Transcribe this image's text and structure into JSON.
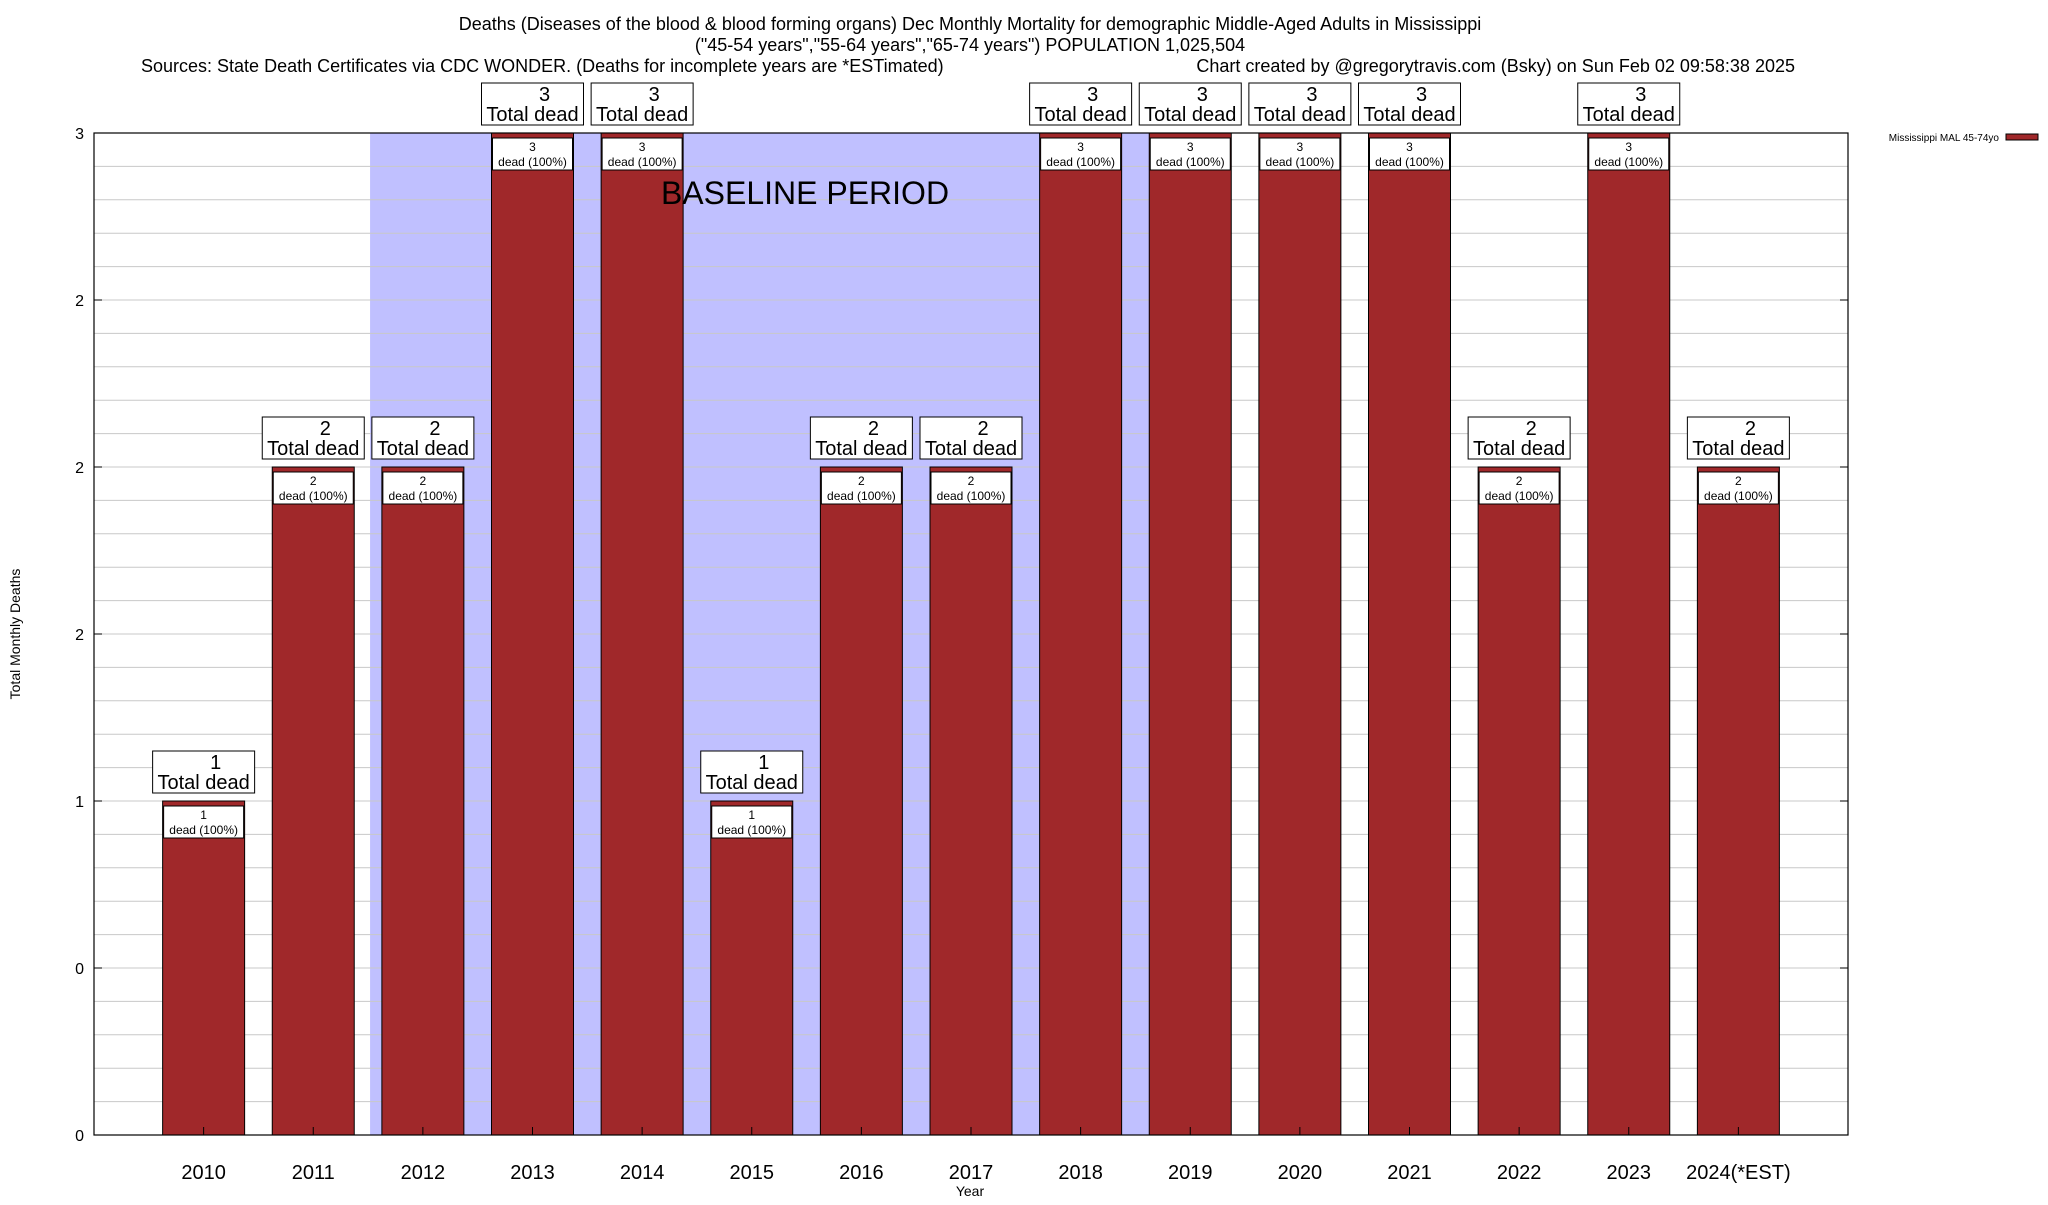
{
  "chart_data": {
    "type": "bar",
    "title_lines": [
      "Deaths (Diseases of the blood & blood forming organs) Dec Monthly Mortality for demographic Middle-Aged Adults in Mississippi",
      "(\"45-54 years\",\"55-64 years\",\"65-74 years\") POPULATION 1,025,504"
    ],
    "sources_text": "Sources: State Death Certificates via CDC WONDER. (Deaths for incomplete years are *ESTimated)",
    "credit_text": "Chart created by @gregorytravis.com (Bsky) on Sun Feb 02 09:58:38 2025",
    "xlabel": "Year",
    "ylabel": "Total Monthly Deaths",
    "ylim": [
      0,
      3
    ],
    "ytick_labels": [
      "0",
      "0",
      "1",
      "2",
      "2",
      "2",
      "3"
    ],
    "baseline_label": "BASELINE PERIOD",
    "baseline_range": [
      "2012",
      "2019"
    ],
    "categories": [
      "2010",
      "2011",
      "2012",
      "2013",
      "2014",
      "2015",
      "2016",
      "2017",
      "2018",
      "2019",
      "2020",
      "2021",
      "2022",
      "2023",
      "2024(*EST)"
    ],
    "series": [
      {
        "name": "Mississippi MAL 45-74yo",
        "color": "#a0282a",
        "values": [
          1,
          2,
          2,
          3,
          3,
          1,
          2,
          2,
          3,
          3,
          3,
          3,
          2,
          3,
          2
        ]
      }
    ],
    "total_label_suffix": "Total dead",
    "inner_label_suffix": "dead (100%)",
    "legend_position": "top-right",
    "colors": {
      "bar": "#a0282a",
      "baseline_shade": "#c0c0ff",
      "grid": "#c8c8c8"
    }
  }
}
